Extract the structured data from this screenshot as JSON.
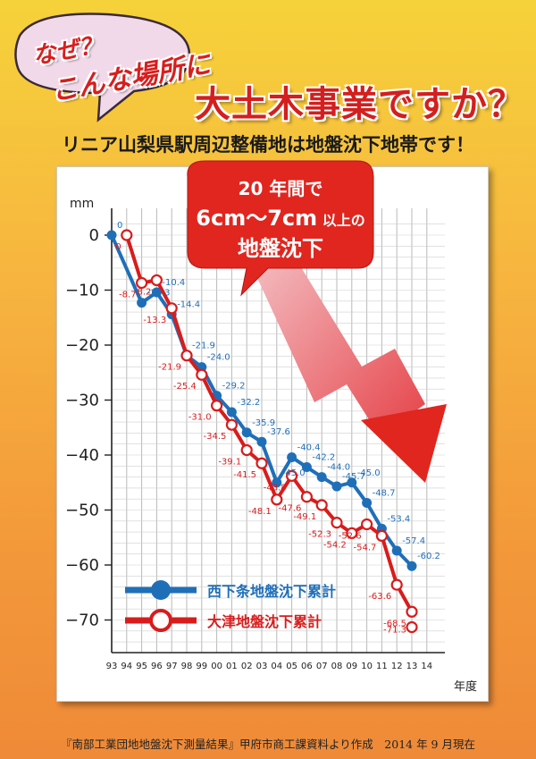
{
  "header": {
    "why_line1": "なぜ？",
    "why_line2": "こんな場所に",
    "headline": "大土木事業ですか？",
    "subtitle": "リニア山梨県駅周辺整備地は地盤沈下地帯です！"
  },
  "callout": {
    "line1": "20 年間で",
    "line2_main": "6cm〜7cm",
    "line2_small": "以上の",
    "line3": "地盤沈下",
    "color": "#e0261f"
  },
  "source_note": "『南部工業団地地盤沈下測量結果』甲府市商工課資料より作成　2014 年 9 月現在",
  "chart_data": {
    "type": "line",
    "title": "",
    "ylabel": "mm",
    "xlabel": "年度",
    "ylim": [
      -75,
      3
    ],
    "yticks": [
      0,
      -10,
      -20,
      -30,
      -40,
      -50,
      -60,
      -70
    ],
    "ytick_labels": [
      "0",
      "−10",
      "−20",
      "−30",
      "−40",
      "−50",
      "−60",
      "−70"
    ],
    "x_categories": [
      "93",
      "94",
      "95",
      "96",
      "97",
      "98",
      "99",
      "00",
      "01",
      "02",
      "03",
      "04",
      "05",
      "06",
      "07",
      "08",
      "09",
      "10",
      "11",
      "12",
      "13",
      "14"
    ],
    "grid": true,
    "legend_position": "bottom-left",
    "series": [
      {
        "name": "西下条地盤沈下累計",
        "color": "#1f6fb8",
        "marker": "filled",
        "x": [
          "93",
          "95",
          "96",
          "97",
          "98",
          "99",
          "00",
          "01",
          "02",
          "03",
          "04",
          "05",
          "06",
          "07",
          "08",
          "09",
          "10",
          "11",
          "12",
          "13"
        ],
        "values": [
          0,
          -12.3,
          -10.4,
          -14.4,
          -21.9,
          -24.0,
          -29.2,
          -32.2,
          -35.9,
          -37.6,
          -45.0,
          -40.4,
          -42.2,
          -44.0,
          -45.7,
          -45.0,
          -48.7,
          -53.4,
          -57.4,
          -60.2
        ],
        "labels": [
          "0",
          "-12.3",
          "-10.4",
          "-14.4",
          "-21.9",
          "-24.0",
          "-29.2",
          "-32.2",
          "-35.9",
          "-37.6",
          "-45.0",
          "-40.4",
          "-42.2",
          "-44.0",
          "-45.7",
          "-45.0",
          "-48.7",
          "-53.4",
          "-57.4",
          "-60.2"
        ]
      },
      {
        "name": "大津地盤沈下累計",
        "color": "#d81c1c",
        "marker": "hollow",
        "x": [
          "94",
          "95",
          "96",
          "97",
          "98",
          "99",
          "00",
          "01",
          "02",
          "03",
          "04",
          "05",
          "06",
          "07",
          "08",
          "09",
          "10",
          "11",
          "12",
          "13"
        ],
        "values": [
          0,
          -8.7,
          -8.2,
          -13.3,
          -21.9,
          -25.4,
          -31.0,
          -34.5,
          -39.1,
          -41.5,
          -48.1,
          -43.8,
          -47.6,
          -49.1,
          -52.3,
          -54.2,
          -52.6,
          -54.7,
          -63.6,
          -68.5
        ],
        "labels": [
          "0",
          "-8.7",
          "-8.2",
          "-13.3",
          "-21.9",
          "-25.4",
          "-31.0",
          "-34.5",
          "-39.1",
          "-41.5",
          "-48.1",
          "-43.8",
          "-47.6",
          "-49.1",
          "-52.3",
          "-54.2",
          "-52.6",
          "-54.7",
          "-63.6",
          "-68.5"
        ]
      }
    ],
    "extra_label": "-71.3"
  }
}
